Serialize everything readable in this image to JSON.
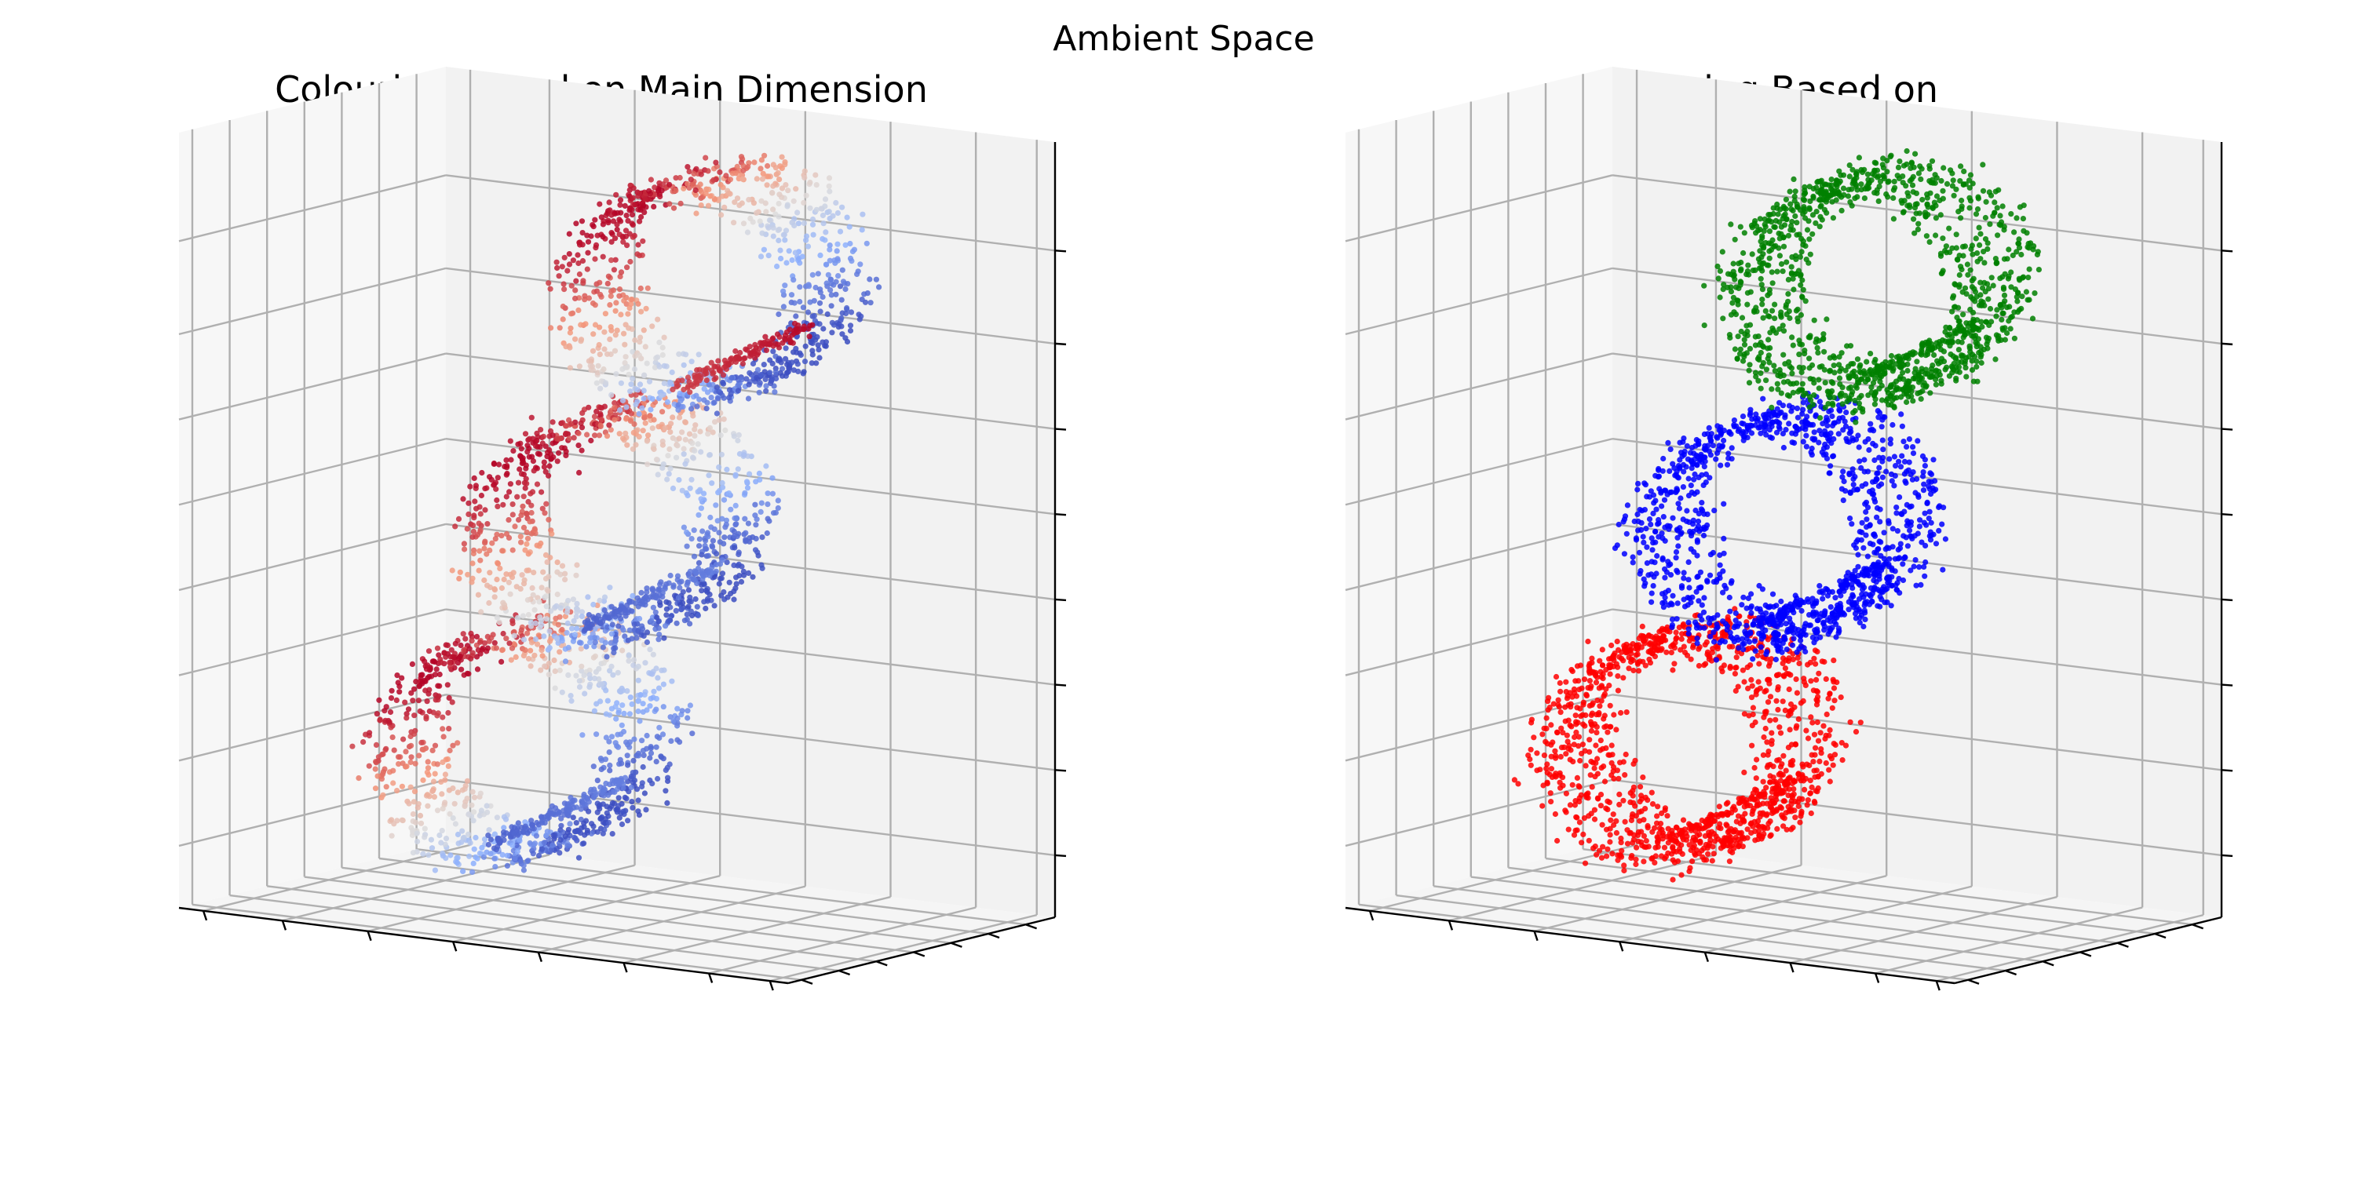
{
  "figure": {
    "suptitle": "Ambient Space"
  },
  "colors": {
    "pane_back": "#f2f2f2",
    "pane_left": "#f7f7f7",
    "pane_floor": "#f5f5f5",
    "grid": "#b0b0b0",
    "axis": "#000000",
    "coolwarm_low": "#3b4cc0",
    "coolwarm_mid": "#dddcdc",
    "coolwarm_high": "#b40426"
  },
  "chart_data": [
    {
      "type": "scatter",
      "projection": "3d",
      "title": "Colouring Based on Main Dimension",
      "coloring": "colormap",
      "colormap": "coolwarm",
      "grid": true,
      "tick_labels_visible": false,
      "series": [
        {
          "values_color": "coolwarm",
          "center": [
            0.15,
            0.5,
            0.25
          ],
          "points": 900
        },
        {
          "values_color": "coolwarm",
          "center": [
            0.5,
            0.5,
            0.5
          ],
          "points": 900
        },
        {
          "values_color": "coolwarm",
          "center": [
            0.85,
            0.5,
            0.78
          ],
          "points": 900
        }
      ]
    },
    {
      "type": "scatter",
      "projection": "3d",
      "title": "Colouring Based on",
      "coloring": "categorical",
      "grid": true,
      "tick_labels_visible": false,
      "series": [
        {
          "color": "#ff0000",
          "center": [
            0.15,
            0.5,
            0.25
          ],
          "points": 1100
        },
        {
          "color": "#0000ff",
          "center": [
            0.5,
            0.5,
            0.5
          ],
          "points": 1100
        },
        {
          "color": "#008000",
          "center": [
            0.85,
            0.5,
            0.78
          ],
          "points": 1100
        }
      ]
    }
  ]
}
